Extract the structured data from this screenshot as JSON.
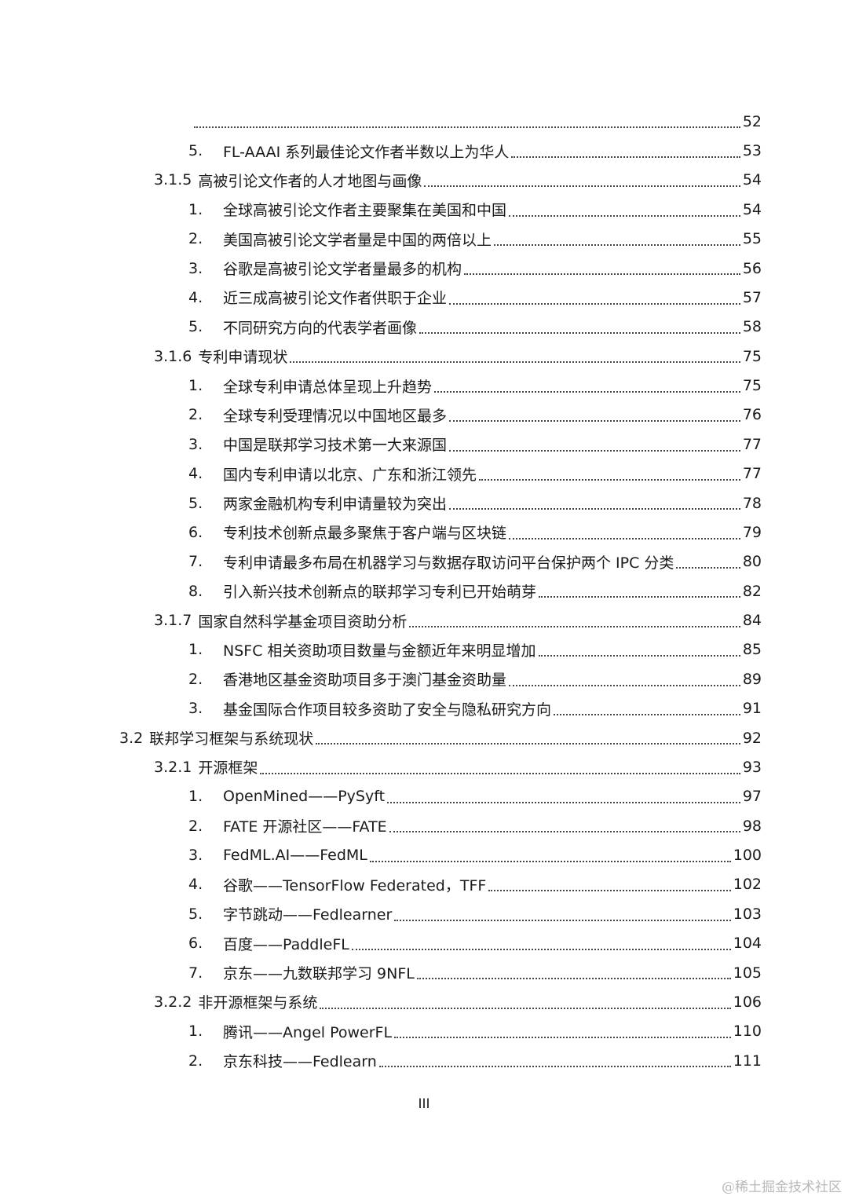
{
  "toc": [
    {
      "level": "l0",
      "num": "",
      "title": "",
      "page": "52"
    },
    {
      "level": "l3",
      "num": "5.",
      "title": "FL-AAAI 系列最佳论文作者半数以上为华人",
      "page": "53"
    },
    {
      "level": "l2",
      "num": "3.1.5",
      "title": "高被引论文作者的人才地图与画像",
      "page": "54"
    },
    {
      "level": "l3",
      "num": "1.",
      "title": "全球高被引论文作者主要聚集在美国和中国",
      "page": "54"
    },
    {
      "level": "l3",
      "num": "2.",
      "title": "美国高被引论文学者量是中国的两倍以上",
      "page": "55"
    },
    {
      "level": "l3",
      "num": "3.",
      "title": "谷歌是高被引论文学者量最多的机构",
      "page": "56"
    },
    {
      "level": "l3",
      "num": "4.",
      "title": "近三成高被引论文作者供职于企业",
      "page": "57"
    },
    {
      "level": "l3",
      "num": "5.",
      "title": "不同研究方向的代表学者画像",
      "page": "58"
    },
    {
      "level": "l2",
      "num": "3.1.6",
      "title": "专利申请现状",
      "page": "75"
    },
    {
      "level": "l3",
      "num": "1.",
      "title": "全球专利申请总体呈现上升趋势",
      "page": "75"
    },
    {
      "level": "l3",
      "num": "2.",
      "title": "全球专利受理情况以中国地区最多",
      "page": "76"
    },
    {
      "level": "l3",
      "num": "3.",
      "title": "中国是联邦学习技术第一大来源国",
      "page": "77"
    },
    {
      "level": "l3",
      "num": "4.",
      "title": "国内专利申请以北京、广东和浙江领先",
      "page": "77"
    },
    {
      "level": "l3",
      "num": "5.",
      "title": "两家金融机构专利申请量较为突出",
      "page": "78"
    },
    {
      "level": "l3",
      "num": "6.",
      "title": "专利技术创新点最多聚焦于客户端与区块链",
      "page": "79"
    },
    {
      "level": "l3",
      "num": "7.",
      "title": "专利申请最多布局在机器学习与数据存取访问平台保护两个 IPC 分类",
      "page": "80"
    },
    {
      "level": "l3",
      "num": "8.",
      "title": "引入新兴技术创新点的联邦学习专利已开始萌芽",
      "page": "82"
    },
    {
      "level": "l2",
      "num": "3.1.7",
      "title": "国家自然科学基金项目资助分析",
      "page": "84"
    },
    {
      "level": "l3",
      "num": "1.",
      "title": "NSFC 相关资助项目数量与金额近年来明显增加",
      "page": "85"
    },
    {
      "level": "l3",
      "num": "2.",
      "title": "香港地区基金资助项目多于澳门基金资助量",
      "page": "89"
    },
    {
      "level": "l3",
      "num": "3.",
      "title": "基金国际合作项目较多资助了安全与隐私研究方向",
      "page": "91"
    },
    {
      "level": "l1",
      "num": "3.2",
      "title": "联邦学习框架与系统现状",
      "page": "92"
    },
    {
      "level": "l2",
      "num": "3.2.1",
      "title": "开源框架",
      "page": "93"
    },
    {
      "level": "l3",
      "num": "1.",
      "title": "OpenMined——PySyft",
      "page": "97"
    },
    {
      "level": "l3",
      "num": "2.",
      "title": "FATE 开源社区——FATE",
      "page": "98"
    },
    {
      "level": "l3",
      "num": "3.",
      "title": "FedML.AI——FedML",
      "page": "100"
    },
    {
      "level": "l3",
      "num": "4.",
      "title": "谷歌——TensorFlow Federated，TFF",
      "page": "102"
    },
    {
      "level": "l3",
      "num": "5.",
      "title": "字节跳动——Fedlearner",
      "page": "103"
    },
    {
      "level": "l3",
      "num": "6.",
      "title": "百度——PaddleFL",
      "page": "104"
    },
    {
      "level": "l3",
      "num": "7.",
      "title": "京东——九数联邦学习 9NFL",
      "page": "105"
    },
    {
      "level": "l2",
      "num": "3.2.2",
      "title": "非开源框架与系统",
      "page": "106"
    },
    {
      "level": "l3",
      "num": "1.",
      "title": "腾讯——Angel PowerFL",
      "page": "110"
    },
    {
      "level": "l3",
      "num": "2.",
      "title": "京东科技——Fedlearn",
      "page": "111"
    }
  ],
  "footer": {
    "page_number": "III"
  },
  "watermark": "@稀土掘金技术社区"
}
